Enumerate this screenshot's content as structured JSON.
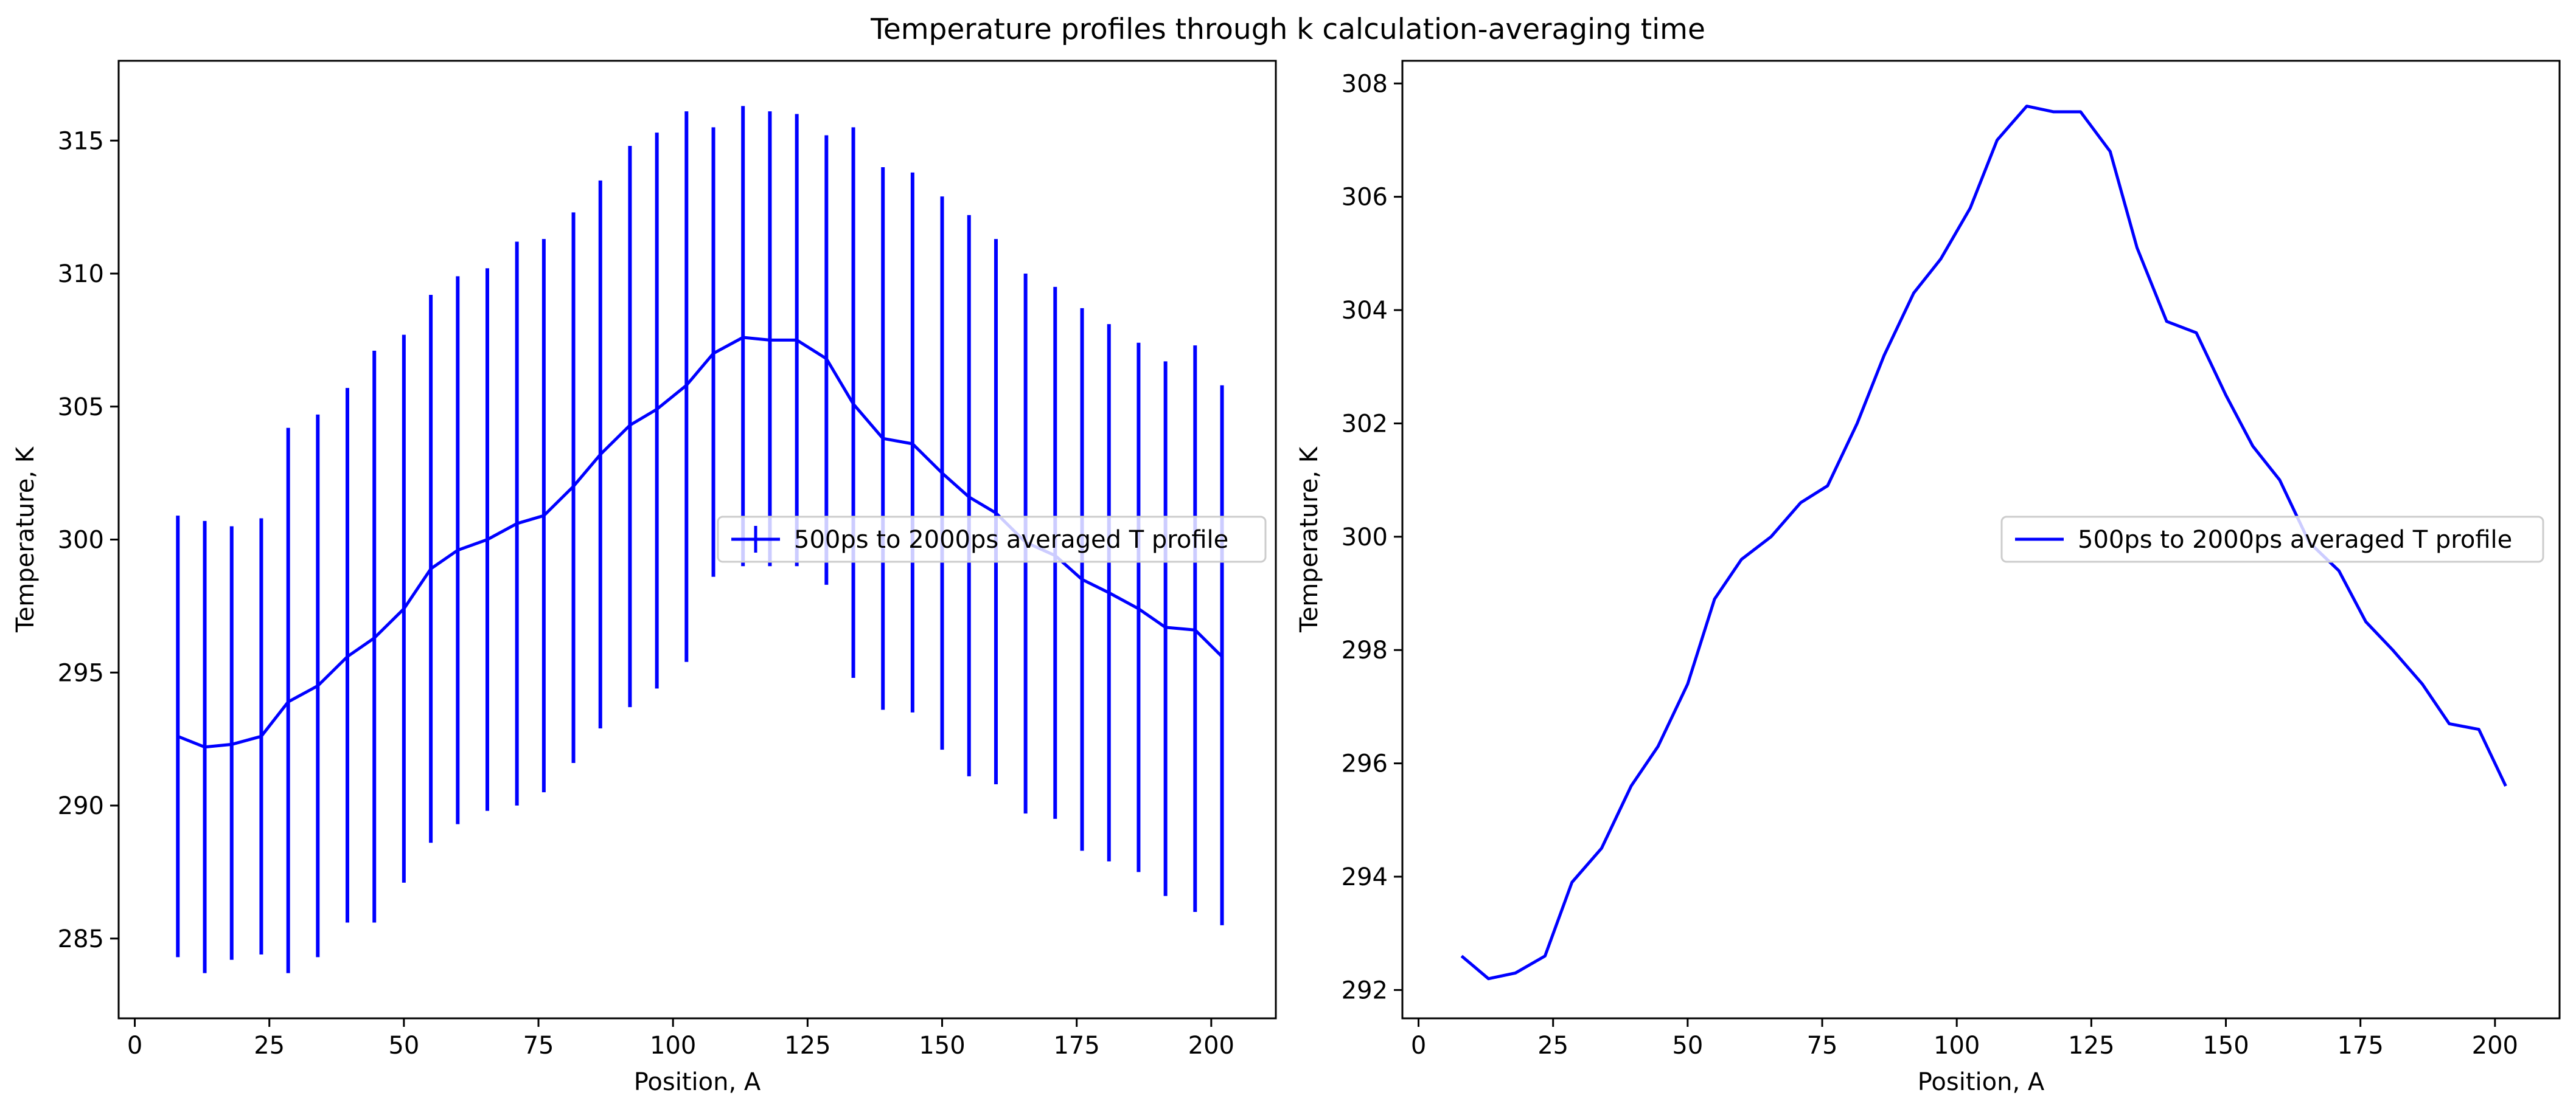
{
  "figure_title": "Temperature profiles through k calculation-averaging time",
  "colors": {
    "series": "#0000ff",
    "axes": "#000000",
    "legend_border": "#cccccc"
  },
  "chart_data": [
    {
      "type": "line",
      "error_bars": true,
      "title": "",
      "xlabel": "Position, A",
      "ylabel": "Temperature, K",
      "xlim": [
        -3,
        212
      ],
      "ylim": [
        282,
        318
      ],
      "xticks": [
        0,
        25,
        50,
        75,
        100,
        125,
        150,
        175,
        200
      ],
      "yticks": [
        285,
        290,
        295,
        300,
        305,
        310,
        315
      ],
      "grid": false,
      "legend_position": "right",
      "series": [
        {
          "name": "500ps to 2000ps averaged T profile",
          "x": [
            8,
            13,
            18,
            23.5,
            28.5,
            34,
            39.5,
            44.5,
            50,
            55,
            60,
            65.5,
            71,
            76,
            81.5,
            86.5,
            92,
            97,
            102.5,
            107.5,
            113,
            118,
            123,
            128.5,
            133.5,
            139,
            144.5,
            150,
            155,
            160,
            165.5,
            171,
            176,
            181,
            186.5,
            191.5,
            197,
            202
          ],
          "y": [
            292.6,
            292.2,
            292.3,
            292.6,
            293.9,
            294.5,
            295.6,
            296.3,
            297.4,
            298.9,
            299.6,
            300.0,
            300.6,
            300.9,
            302.0,
            303.2,
            304.3,
            304.9,
            305.8,
            307.0,
            307.6,
            307.5,
            307.5,
            306.8,
            305.1,
            303.8,
            303.6,
            302.5,
            301.6,
            301.0,
            299.9,
            299.4,
            298.5,
            298.0,
            297.4,
            296.7,
            296.6,
            295.6
          ],
          "yerr_low": [
            284.3,
            283.7,
            284.2,
            284.4,
            283.7,
            284.3,
            285.6,
            285.6,
            287.1,
            288.6,
            289.3,
            289.8,
            290.0,
            290.5,
            291.6,
            292.9,
            293.7,
            294.4,
            295.4,
            298.6,
            299.0,
            299.0,
            299.0,
            298.3,
            294.8,
            293.6,
            293.5,
            292.1,
            291.1,
            290.8,
            289.7,
            289.5,
            288.3,
            287.9,
            287.5,
            286.6,
            286.0,
            285.5
          ],
          "yerr_high": [
            300.9,
            300.7,
            300.5,
            300.8,
            304.2,
            304.7,
            305.7,
            307.1,
            307.7,
            309.2,
            309.9,
            310.2,
            311.2,
            311.3,
            312.3,
            313.5,
            314.8,
            315.3,
            316.1,
            315.5,
            316.3,
            316.1,
            316.0,
            315.2,
            315.5,
            314.0,
            313.8,
            312.9,
            312.2,
            311.3,
            310.0,
            309.5,
            308.7,
            308.1,
            307.4,
            306.7,
            307.3,
            305.8
          ]
        }
      ]
    },
    {
      "type": "line",
      "title": "",
      "xlabel": "Position, A",
      "ylabel": "Temperature, K",
      "xlim": [
        -3,
        212
      ],
      "ylim": [
        291.5,
        308.4
      ],
      "xticks": [
        0,
        25,
        50,
        75,
        100,
        125,
        150,
        175,
        200
      ],
      "yticks": [
        292,
        294,
        296,
        298,
        300,
        302,
        304,
        306,
        308
      ],
      "grid": false,
      "legend_position": "right",
      "series": [
        {
          "name": "500ps to 2000ps averaged T profile",
          "x": [
            8,
            13,
            18,
            23.5,
            28.5,
            34,
            39.5,
            44.5,
            50,
            55,
            60,
            65.5,
            71,
            76,
            81.5,
            86.5,
            92,
            97,
            102.5,
            107.5,
            113,
            118,
            123,
            128.5,
            133.5,
            139,
            144.5,
            150,
            155,
            160,
            165.5,
            171,
            176,
            181,
            186.5,
            191.5,
            197,
            202
          ],
          "y": [
            292.6,
            292.2,
            292.3,
            292.6,
            293.9,
            294.5,
            295.6,
            296.3,
            297.4,
            298.9,
            299.6,
            300.0,
            300.6,
            300.9,
            302.0,
            303.2,
            304.3,
            304.9,
            305.8,
            307.0,
            307.6,
            307.5,
            307.5,
            306.8,
            305.1,
            303.8,
            303.6,
            302.5,
            301.6,
            301.0,
            299.9,
            299.4,
            298.5,
            298.0,
            297.4,
            296.7,
            296.6,
            295.6
          ]
        }
      ]
    }
  ]
}
